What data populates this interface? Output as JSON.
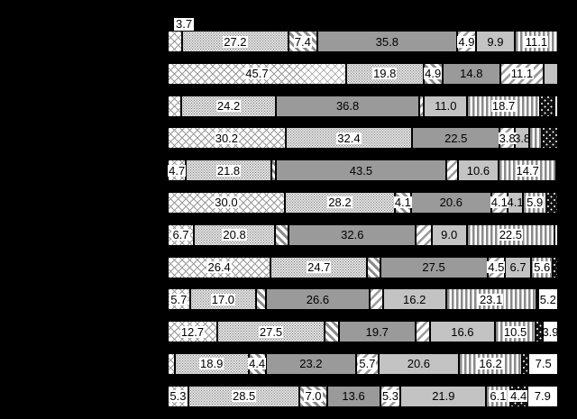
{
  "colors": {
    "background": "#000000",
    "medium_gray": "#9a9a9a",
    "light_gray": "#c3c3c3",
    "pattern_stripe_gray": "#8c8c8c",
    "label_text": "#000000",
    "label_box": "#ffffff"
  },
  "chart_data": {
    "type": "bar",
    "orientation": "horizontal-stacked",
    "unit": "percent",
    "xlim": [
      0,
      100
    ],
    "title": "",
    "xlabel": "",
    "ylabel": "",
    "grid": false,
    "legend_visible": false,
    "category_labels_visible": false,
    "series_patterns": [
      {
        "key": "crosshatch",
        "description": "white with light diagonal crosshatch"
      },
      {
        "key": "dots",
        "description": "white with dense gray dots"
      },
      {
        "key": "dark-diagonal",
        "description": "white with thick backslash diagonal stripes"
      },
      {
        "key": "gray",
        "description": "solid medium gray"
      },
      {
        "key": "light-diagonal",
        "description": "white with forward-slash diagonal stripes"
      },
      {
        "key": "light-gray",
        "description": "solid light gray"
      },
      {
        "key": "vertical-stripes",
        "description": "gray and white vertical stripes"
      },
      {
        "key": "black-dots",
        "description": "black with sparse white dots"
      },
      {
        "key": "white",
        "description": "solid white"
      }
    ],
    "rows": [
      {
        "segments": [
          {
            "pattern": "crosshatch",
            "value": 3.7,
            "label": "3.7",
            "label_above": true
          },
          {
            "pattern": "dots",
            "value": 27.2,
            "label": "27.2"
          },
          {
            "pattern": "dark-diagonal",
            "value": 7.4,
            "label": "7.4"
          },
          {
            "pattern": "gray",
            "value": 35.8,
            "label": "35.8"
          },
          {
            "pattern": "light-diagonal",
            "value": 4.9,
            "label": "4.9"
          },
          {
            "pattern": "light-gray",
            "value": 9.9,
            "label": "9.9"
          },
          {
            "pattern": "vertical-stripes",
            "value": 11.1,
            "label": "11.1"
          }
        ]
      },
      {
        "segments": [
          {
            "pattern": "crosshatch",
            "value": 45.7,
            "label": "45.7"
          },
          {
            "pattern": "dots",
            "value": 19.8,
            "label": "19.8"
          },
          {
            "pattern": "dark-diagonal",
            "value": 4.9,
            "label": "4.9"
          },
          {
            "pattern": "gray",
            "value": 14.8,
            "label": "14.8"
          },
          {
            "pattern": "light-diagonal",
            "value": 11.1,
            "label": "11.1"
          },
          {
            "pattern": "light-gray",
            "value": 3.7,
            "label": ""
          }
        ]
      },
      {
        "segments": [
          {
            "pattern": "crosshatch",
            "value": 3.5,
            "label": ""
          },
          {
            "pattern": "dots",
            "value": 24.2,
            "label": "24.2"
          },
          {
            "pattern": "gray",
            "value": 36.8,
            "label": "36.8"
          },
          {
            "pattern": "light-diagonal",
            "value": 1.2,
            "label": ""
          },
          {
            "pattern": "light-gray",
            "value": 11.0,
            "label": "11.0"
          },
          {
            "pattern": "vertical-stripes",
            "value": 18.7,
            "label": "18.7"
          },
          {
            "pattern": "black-dots",
            "value": 3.6,
            "label": ""
          },
          {
            "pattern": "white",
            "value": 1.0,
            "label": ""
          }
        ]
      },
      {
        "segments": [
          {
            "pattern": "crosshatch",
            "value": 30.2,
            "label": "30.2"
          },
          {
            "pattern": "dots",
            "value": 32.4,
            "label": "32.4"
          },
          {
            "pattern": "gray",
            "value": 22.5,
            "label": "22.5"
          },
          {
            "pattern": "light-diagonal",
            "value": 3.8,
            "label": "3.8"
          },
          {
            "pattern": "light-gray",
            "value": 3.8,
            "label": "3.8"
          },
          {
            "pattern": "vertical-stripes",
            "value": 3.2,
            "label": ""
          },
          {
            "pattern": "black-dots",
            "value": 4.1,
            "label": ""
          }
        ]
      },
      {
        "segments": [
          {
            "pattern": "crosshatch",
            "value": 4.7,
            "label": "4.7"
          },
          {
            "pattern": "dots",
            "value": 21.8,
            "label": "21.8"
          },
          {
            "pattern": "dark-diagonal",
            "value": 1.3,
            "label": ""
          },
          {
            "pattern": "gray",
            "value": 43.5,
            "label": "43.5"
          },
          {
            "pattern": "light-diagonal",
            "value": 3.0,
            "label": ""
          },
          {
            "pattern": "light-gray",
            "value": 10.6,
            "label": "10.6"
          },
          {
            "pattern": "vertical-stripes",
            "value": 14.7,
            "label": "14.7"
          },
          {
            "pattern": "white",
            "value": 0.4,
            "label": ""
          }
        ]
      },
      {
        "segments": [
          {
            "pattern": "crosshatch",
            "value": 30.0,
            "label": "30.0"
          },
          {
            "pattern": "dots",
            "value": 28.2,
            "label": "28.2"
          },
          {
            "pattern": "dark-diagonal",
            "value": 4.1,
            "label": "4.1"
          },
          {
            "pattern": "gray",
            "value": 20.6,
            "label": "20.6"
          },
          {
            "pattern": "light-diagonal",
            "value": 4.1,
            "label": "4.1"
          },
          {
            "pattern": "light-gray",
            "value": 4.1,
            "label": "4.1"
          },
          {
            "pattern": "vertical-stripes",
            "value": 5.9,
            "label": "5.9"
          },
          {
            "pattern": "black-dots",
            "value": 3.0,
            "label": ""
          }
        ]
      },
      {
        "segments": [
          {
            "pattern": "crosshatch",
            "value": 6.7,
            "label": "6.7"
          },
          {
            "pattern": "dots",
            "value": 20.8,
            "label": "20.8"
          },
          {
            "pattern": "dark-diagonal",
            "value": 3.5,
            "label": ""
          },
          {
            "pattern": "gray",
            "value": 32.6,
            "label": "32.6"
          },
          {
            "pattern": "light-diagonal",
            "value": 4.0,
            "label": ""
          },
          {
            "pattern": "light-gray",
            "value": 9.0,
            "label": "9.0"
          },
          {
            "pattern": "vertical-stripes",
            "value": 22.5,
            "label": "22.5"
          },
          {
            "pattern": "white",
            "value": 0.9,
            "label": ""
          }
        ]
      },
      {
        "segments": [
          {
            "pattern": "crosshatch",
            "value": 26.4,
            "label": "26.4"
          },
          {
            "pattern": "dots",
            "value": 24.7,
            "label": "24.7"
          },
          {
            "pattern": "dark-diagonal",
            "value": 3.3,
            "label": ""
          },
          {
            "pattern": "gray",
            "value": 27.5,
            "label": "27.5"
          },
          {
            "pattern": "light-diagonal",
            "value": 4.5,
            "label": "4.5"
          },
          {
            "pattern": "light-gray",
            "value": 6.7,
            "label": "6.7"
          },
          {
            "pattern": "vertical-stripes",
            "value": 5.6,
            "label": "5.6"
          },
          {
            "pattern": "black-dots",
            "value": 1.3,
            "label": ""
          }
        ]
      },
      {
        "segments": [
          {
            "pattern": "crosshatch",
            "value": 5.7,
            "label": "5.7"
          },
          {
            "pattern": "dots",
            "value": 17.0,
            "label": "17.0"
          },
          {
            "pattern": "dark-diagonal",
            "value": 2.5,
            "label": ""
          },
          {
            "pattern": "gray",
            "value": 26.6,
            "label": "26.6"
          },
          {
            "pattern": "light-diagonal",
            "value": 3.4,
            "label": ""
          },
          {
            "pattern": "light-gray",
            "value": 16.2,
            "label": "16.2"
          },
          {
            "pattern": "vertical-stripes",
            "value": 23.1,
            "label": "23.1"
          },
          {
            "pattern": "black-dots",
            "value": 0.3,
            "label": ""
          },
          {
            "pattern": "white",
            "value": 5.2,
            "label": "5.2"
          }
        ]
      },
      {
        "segments": [
          {
            "pattern": "crosshatch",
            "value": 12.7,
            "label": "12.7"
          },
          {
            "pattern": "dots",
            "value": 27.5,
            "label": "27.5"
          },
          {
            "pattern": "dark-diagonal",
            "value": 3.6,
            "label": ""
          },
          {
            "pattern": "gray",
            "value": 19.7,
            "label": "19.7"
          },
          {
            "pattern": "light-diagonal",
            "value": 3.7,
            "label": ""
          },
          {
            "pattern": "light-gray",
            "value": 16.6,
            "label": "16.6"
          },
          {
            "pattern": "vertical-stripes",
            "value": 10.5,
            "label": "10.5"
          },
          {
            "pattern": "black-dots",
            "value": 1.8,
            "label": ""
          },
          {
            "pattern": "white",
            "value": 3.9,
            "label": "3.9"
          }
        ]
      },
      {
        "segments": [
          {
            "pattern": "crosshatch",
            "value": 1.8,
            "label": ""
          },
          {
            "pattern": "dots",
            "value": 18.9,
            "label": "18.9"
          },
          {
            "pattern": "dark-diagonal",
            "value": 4.4,
            "label": "4.4"
          },
          {
            "pattern": "gray",
            "value": 23.2,
            "label": "23.2"
          },
          {
            "pattern": "light-diagonal",
            "value": 5.7,
            "label": "5.7"
          },
          {
            "pattern": "light-gray",
            "value": 20.6,
            "label": "20.6"
          },
          {
            "pattern": "vertical-stripes",
            "value": 16.2,
            "label": "16.2"
          },
          {
            "pattern": "black-dots",
            "value": 1.7,
            "label": ""
          },
          {
            "pattern": "white",
            "value": 7.5,
            "label": "7.5"
          }
        ]
      },
      {
        "segments": [
          {
            "pattern": "crosshatch",
            "value": 5.3,
            "label": "5.3"
          },
          {
            "pattern": "dots",
            "value": 28.5,
            "label": "28.5"
          },
          {
            "pattern": "dark-diagonal",
            "value": 7.0,
            "label": "7.0"
          },
          {
            "pattern": "gray",
            "value": 13.6,
            "label": "13.6"
          },
          {
            "pattern": "light-diagonal",
            "value": 5.3,
            "label": "5.3"
          },
          {
            "pattern": "light-gray",
            "value": 21.9,
            "label": "21.9"
          },
          {
            "pattern": "vertical-stripes",
            "value": 6.1,
            "label": "6.1"
          },
          {
            "pattern": "black-dots",
            "value": 4.4,
            "label": "4.4"
          },
          {
            "pattern": "white",
            "value": 7.9,
            "label": "7.9"
          }
        ]
      }
    ]
  }
}
